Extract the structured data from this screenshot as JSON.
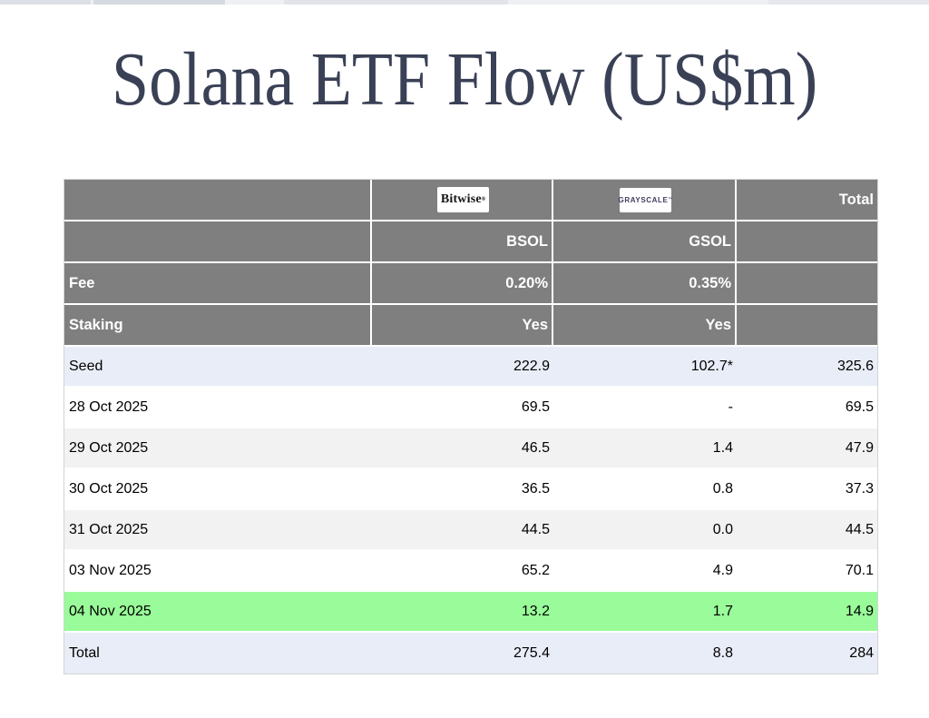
{
  "title": "Solana ETF Flow (US$m)",
  "colors": {
    "title_text": "#3a4156",
    "header_bg": "#7f7f7f",
    "header_text": "#ffffff",
    "row_blue": "#e9edf7",
    "row_gray": "#f2f2f2",
    "row_highlight_green": "#99fb99",
    "bitwise_logo_text": "#151515",
    "grayscale_logo_text": "#3d3d5f"
  },
  "table": {
    "header": {
      "bitwise_logo": "Bitwise",
      "bitwise_mark": "®",
      "grayscale_logo": "GRAYSCALE",
      "grayscale_mark": "™",
      "total_label": "Total",
      "tickers": {
        "bsol": "BSOL",
        "gsol": "GSOL"
      },
      "fee_label": "Fee",
      "fee_bsol": "0.20%",
      "fee_gsol": "0.35%",
      "staking_label": "Staking",
      "staking_bsol": "Yes",
      "staking_gsol": "Yes"
    },
    "rows": [
      {
        "label": "Seed",
        "bsol": "222.9",
        "gsol": "102.7*",
        "total": "325.6"
      },
      {
        "label": "28 Oct 2025",
        "bsol": "69.5",
        "gsol": "-",
        "total": "69.5"
      },
      {
        "label": "29 Oct 2025",
        "bsol": "46.5",
        "gsol": "1.4",
        "total": "47.9"
      },
      {
        "label": "30 Oct 2025",
        "bsol": "36.5",
        "gsol": "0.8",
        "total": "37.3"
      },
      {
        "label": "31 Oct 2025",
        "bsol": "44.5",
        "gsol": "0.0",
        "total": "44.5"
      },
      {
        "label": "03 Nov 2025",
        "bsol": "65.2",
        "gsol": "4.9",
        "total": "70.1"
      },
      {
        "label": "04 Nov 2025",
        "bsol": "13.2",
        "gsol": "1.7",
        "total": "14.9"
      },
      {
        "label": "Total",
        "bsol": "275.4",
        "gsol": "8.8",
        "total": "284"
      }
    ]
  },
  "chart_data": {
    "type": "table",
    "title": "Solana ETF Flow (US$m)",
    "columns": [
      "",
      "BSOL",
      "GSOL",
      "Total"
    ],
    "issuers": [
      {
        "name": "Bitwise",
        "ticker": "BSOL",
        "fee": "0.20%",
        "staking": "Yes"
      },
      {
        "name": "Grayscale",
        "ticker": "GSOL",
        "fee": "0.35%",
        "staking": "Yes"
      }
    ],
    "rows": [
      {
        "label": "Seed",
        "bsol": 222.9,
        "gsol": 102.7,
        "total": 325.6
      },
      {
        "label": "28 Oct 2025",
        "bsol": 69.5,
        "gsol": null,
        "total": 69.5
      },
      {
        "label": "29 Oct 2025",
        "bsol": 46.5,
        "gsol": 1.4,
        "total": 47.9
      },
      {
        "label": "30 Oct 2025",
        "bsol": 36.5,
        "gsol": 0.8,
        "total": 37.3
      },
      {
        "label": "31 Oct 2025",
        "bsol": 44.5,
        "gsol": 0.0,
        "total": 44.5
      },
      {
        "label": "03 Nov 2025",
        "bsol": 65.2,
        "gsol": 4.9,
        "total": 70.1
      },
      {
        "label": "04 Nov 2025",
        "bsol": 13.2,
        "gsol": 1.7,
        "total": 14.9
      },
      {
        "label": "Total",
        "bsol": 275.4,
        "gsol": 8.8,
        "total": 284
      }
    ],
    "seed_gsol_has_asterisk": true,
    "highlighted_row": "04 Nov 2025"
  }
}
